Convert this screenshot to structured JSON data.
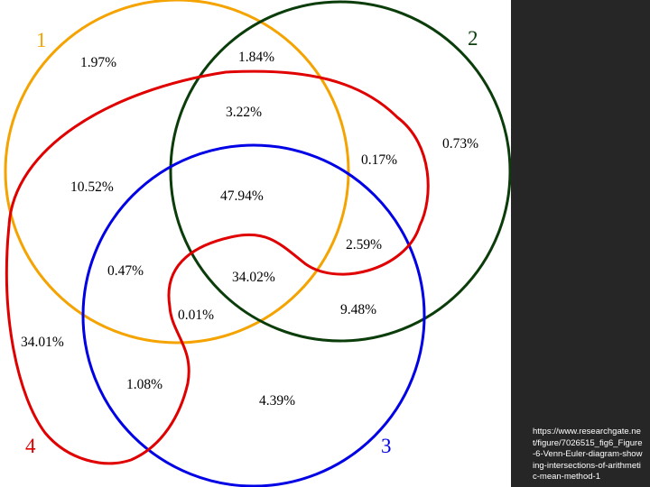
{
  "sets": [
    {
      "label": "1",
      "color": "#F4A300"
    },
    {
      "label": "2",
      "color": "#0B3D0B"
    },
    {
      "label": "3",
      "color": "#0000E6"
    },
    {
      "label": "4",
      "color": "#E00000"
    }
  ],
  "regions": [
    {
      "id": "only-1",
      "value": "1.97%"
    },
    {
      "id": "1-2",
      "value": "1.84%"
    },
    {
      "id": "1-2-4",
      "value": "3.22%"
    },
    {
      "id": "2-4",
      "value": "0.17%"
    },
    {
      "id": "only-2",
      "value": "0.73%"
    },
    {
      "id": "1-4",
      "value": "10.52%"
    },
    {
      "id": "1-2-3-4",
      "value": "47.94%"
    },
    {
      "id": "2-3-4",
      "value": "2.59%"
    },
    {
      "id": "1-3-4",
      "value": "0.47%"
    },
    {
      "id": "1-2-3",
      "value": "34.02%"
    },
    {
      "id": "2-3",
      "value": "9.48%"
    },
    {
      "id": "1-3",
      "value": "0.01%"
    },
    {
      "id": "only-4",
      "value": "34.01%"
    },
    {
      "id": "3-4",
      "value": "1.08%"
    },
    {
      "id": "only-3",
      "value": "4.39%"
    }
  ],
  "source": "https://www.researchgate.net/figure/7026515_fig6_Figure-6-Venn-Euler-diagram-showing-intersections-of-arithmetic-mean-method-1"
}
